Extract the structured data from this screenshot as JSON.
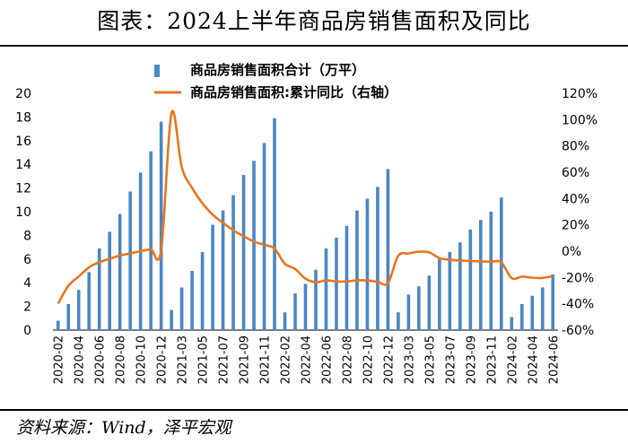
{
  "title": "图表：2024上半年商品房销售面积及同比",
  "source": "资料来源：Wind，泽平宏观",
  "chart_data": {
    "type": "bar+line",
    "legend": [
      "商品房销售面积合计（万平）",
      "商品房销售面积:累计同比（右轴）"
    ],
    "colors": {
      "bar": "#4a86c5",
      "line": "#e8751f"
    },
    "ylim_left": [
      0,
      20
    ],
    "yticks_left": [
      "0",
      "2",
      "4",
      "6",
      "8",
      "10",
      "12",
      "14",
      "16",
      "18",
      "20"
    ],
    "ylim_right": [
      -60,
      120
    ],
    "yticks_right": [
      "-60%",
      "-40%",
      "-20%",
      "0%",
      "20%",
      "40%",
      "60%",
      "80%",
      "100%",
      "120%"
    ],
    "x_tick_labels": [
      "2020-02",
      "2020-04",
      "2020-06",
      "2020-08",
      "2020-10",
      "2020-12",
      "2021-03",
      "2021-05",
      "2021-07",
      "2021-09",
      "2021-11",
      "2022-02",
      "2022-04",
      "2022-06",
      "2022-08",
      "2022-10",
      "2022-12",
      "2023-03",
      "2023-05",
      "2023-07",
      "2023-09",
      "2023-11",
      "2024-02",
      "2024-04",
      "2024-06"
    ],
    "categories": [
      "2020-02",
      "2020-03",
      "2020-04",
      "2020-05",
      "2020-06",
      "2020-07",
      "2020-08",
      "2020-09",
      "2020-10",
      "2020-11",
      "2020-12",
      "2021-02",
      "2021-03",
      "2021-04",
      "2021-05",
      "2021-06",
      "2021-07",
      "2021-08",
      "2021-09",
      "2021-10",
      "2021-11",
      "2021-12",
      "2022-02",
      "2022-03",
      "2022-04",
      "2022-05",
      "2022-06",
      "2022-07",
      "2022-08",
      "2022-09",
      "2022-10",
      "2022-11",
      "2022-12",
      "2023-02",
      "2023-03",
      "2023-04",
      "2023-05",
      "2023-06",
      "2023-07",
      "2023-08",
      "2023-09",
      "2023-10",
      "2023-11",
      "2023-12",
      "2024-02",
      "2024-03",
      "2024-04",
      "2024-05",
      "2024-06"
    ],
    "bars": [
      0.8,
      2.2,
      3.4,
      4.9,
      6.9,
      8.3,
      9.8,
      11.7,
      13.3,
      15.1,
      17.6,
      1.7,
      3.6,
      5.0,
      6.6,
      8.9,
      10.1,
      11.4,
      13.1,
      14.3,
      15.8,
      17.9,
      1.5,
      3.1,
      3.9,
      5.1,
      6.9,
      7.8,
      8.8,
      10.1,
      11.1,
      12.1,
      13.6,
      1.5,
      3.0,
      3.7,
      4.6,
      6.0,
      6.6,
      7.4,
      8.5,
      9.3,
      10.0,
      11.2,
      1.1,
      2.2,
      2.9,
      3.6,
      4.7
    ],
    "line": [
      -39.9,
      -26.3,
      -19.3,
      -12.3,
      -8.4,
      -5.8,
      -3.3,
      -1.8,
      0.0,
      1.3,
      1.0,
      104.9,
      63.8,
      48.1,
      36.4,
      27.7,
      21.5,
      15.9,
      11.3,
      7.3,
      4.8,
      1.9,
      -9.6,
      -13.6,
      -20.9,
      -23.6,
      -22.2,
      -23.1,
      -23.0,
      -22.2,
      -22.3,
      -23.3,
      -24.3,
      -3.6,
      -1.8,
      -0.4,
      -0.9,
      -5.3,
      -6.5,
      -7.1,
      -7.5,
      -7.8,
      -8.0,
      -8.5,
      -20.5,
      -19.4,
      -20.2,
      -20.3,
      -19.0
    ]
  }
}
